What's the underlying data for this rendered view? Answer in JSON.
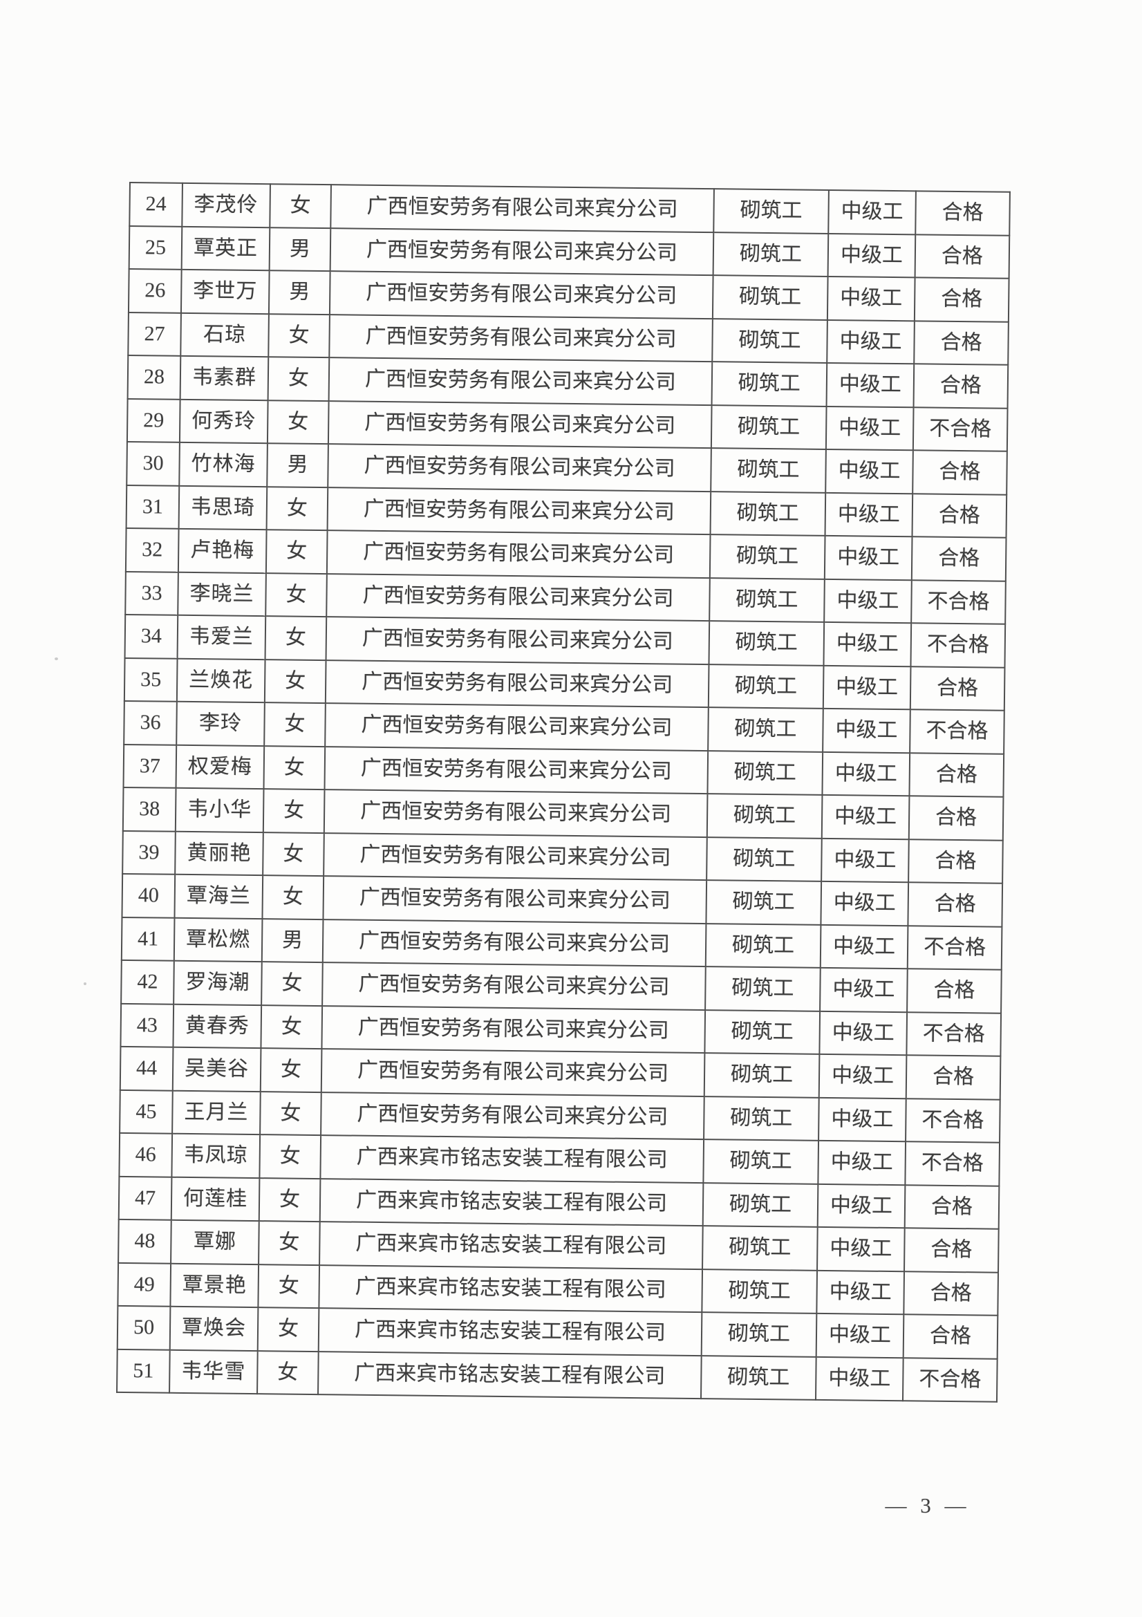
{
  "document": {
    "table": {
      "rows": [
        {
          "no": "24",
          "name": "李茂伶",
          "gender": "女",
          "company": "广西恒安劳务有限公司来宾分公司",
          "occupation": "砌筑工",
          "level": "中级工",
          "result": "合格"
        },
        {
          "no": "25",
          "name": "覃英正",
          "gender": "男",
          "company": "广西恒安劳务有限公司来宾分公司",
          "occupation": "砌筑工",
          "level": "中级工",
          "result": "合格"
        },
        {
          "no": "26",
          "name": "李世万",
          "gender": "男",
          "company": "广西恒安劳务有限公司来宾分公司",
          "occupation": "砌筑工",
          "level": "中级工",
          "result": "合格"
        },
        {
          "no": "27",
          "name": "石琼",
          "gender": "女",
          "company": "广西恒安劳务有限公司来宾分公司",
          "occupation": "砌筑工",
          "level": "中级工",
          "result": "合格"
        },
        {
          "no": "28",
          "name": "韦素群",
          "gender": "女",
          "company": "广西恒安劳务有限公司来宾分公司",
          "occupation": "砌筑工",
          "level": "中级工",
          "result": "合格"
        },
        {
          "no": "29",
          "name": "何秀玲",
          "gender": "女",
          "company": "广西恒安劳务有限公司来宾分公司",
          "occupation": "砌筑工",
          "level": "中级工",
          "result": "不合格"
        },
        {
          "no": "30",
          "name": "竹林海",
          "gender": "男",
          "company": "广西恒安劳务有限公司来宾分公司",
          "occupation": "砌筑工",
          "level": "中级工",
          "result": "合格"
        },
        {
          "no": "31",
          "name": "韦思琦",
          "gender": "女",
          "company": "广西恒安劳务有限公司来宾分公司",
          "occupation": "砌筑工",
          "level": "中级工",
          "result": "合格"
        },
        {
          "no": "32",
          "name": "卢艳梅",
          "gender": "女",
          "company": "广西恒安劳务有限公司来宾分公司",
          "occupation": "砌筑工",
          "level": "中级工",
          "result": "合格"
        },
        {
          "no": "33",
          "name": "李晓兰",
          "gender": "女",
          "company": "广西恒安劳务有限公司来宾分公司",
          "occupation": "砌筑工",
          "level": "中级工",
          "result": "不合格"
        },
        {
          "no": "34",
          "name": "韦爱兰",
          "gender": "女",
          "company": "广西恒安劳务有限公司来宾分公司",
          "occupation": "砌筑工",
          "level": "中级工",
          "result": "不合格"
        },
        {
          "no": "35",
          "name": "兰焕花",
          "gender": "女",
          "company": "广西恒安劳务有限公司来宾分公司",
          "occupation": "砌筑工",
          "level": "中级工",
          "result": "合格"
        },
        {
          "no": "36",
          "name": "李玲",
          "gender": "女",
          "company": "广西恒安劳务有限公司来宾分公司",
          "occupation": "砌筑工",
          "level": "中级工",
          "result": "不合格"
        },
        {
          "no": "37",
          "name": "权爱梅",
          "gender": "女",
          "company": "广西恒安劳务有限公司来宾分公司",
          "occupation": "砌筑工",
          "level": "中级工",
          "result": "合格"
        },
        {
          "no": "38",
          "name": "韦小华",
          "gender": "女",
          "company": "广西恒安劳务有限公司来宾分公司",
          "occupation": "砌筑工",
          "level": "中级工",
          "result": "合格"
        },
        {
          "no": "39",
          "name": "黄丽艳",
          "gender": "女",
          "company": "广西恒安劳务有限公司来宾分公司",
          "occupation": "砌筑工",
          "level": "中级工",
          "result": "合格"
        },
        {
          "no": "40",
          "name": "覃海兰",
          "gender": "女",
          "company": "广西恒安劳务有限公司来宾分公司",
          "occupation": "砌筑工",
          "level": "中级工",
          "result": "合格"
        },
        {
          "no": "41",
          "name": "覃松燃",
          "gender": "男",
          "company": "广西恒安劳务有限公司来宾分公司",
          "occupation": "砌筑工",
          "level": "中级工",
          "result": "不合格"
        },
        {
          "no": "42",
          "name": "罗海潮",
          "gender": "女",
          "company": "广西恒安劳务有限公司来宾分公司",
          "occupation": "砌筑工",
          "level": "中级工",
          "result": "合格"
        },
        {
          "no": "43",
          "name": "黄春秀",
          "gender": "女",
          "company": "广西恒安劳务有限公司来宾分公司",
          "occupation": "砌筑工",
          "level": "中级工",
          "result": "不合格"
        },
        {
          "no": "44",
          "name": "吴美谷",
          "gender": "女",
          "company": "广西恒安劳务有限公司来宾分公司",
          "occupation": "砌筑工",
          "level": "中级工",
          "result": "合格"
        },
        {
          "no": "45",
          "name": "王月兰",
          "gender": "女",
          "company": "广西恒安劳务有限公司来宾分公司",
          "occupation": "砌筑工",
          "level": "中级工",
          "result": "不合格"
        },
        {
          "no": "46",
          "name": "韦凤琼",
          "gender": "女",
          "company": "广西来宾市铭志安装工程有限公司",
          "occupation": "砌筑工",
          "level": "中级工",
          "result": "不合格"
        },
        {
          "no": "47",
          "name": "何莲桂",
          "gender": "女",
          "company": "广西来宾市铭志安装工程有限公司",
          "occupation": "砌筑工",
          "level": "中级工",
          "result": "合格"
        },
        {
          "no": "48",
          "name": "覃娜",
          "gender": "女",
          "company": "广西来宾市铭志安装工程有限公司",
          "occupation": "砌筑工",
          "level": "中级工",
          "result": "合格"
        },
        {
          "no": "49",
          "name": "覃景艳",
          "gender": "女",
          "company": "广西来宾市铭志安装工程有限公司",
          "occupation": "砌筑工",
          "level": "中级工",
          "result": "合格"
        },
        {
          "no": "50",
          "name": "覃焕会",
          "gender": "女",
          "company": "广西来宾市铭志安装工程有限公司",
          "occupation": "砌筑工",
          "level": "中级工",
          "result": "合格"
        },
        {
          "no": "51",
          "name": "韦华雪",
          "gender": "女",
          "company": "广西来宾市铭志安装工程有限公司",
          "occupation": "砌筑工",
          "level": "中级工",
          "result": "不合格"
        }
      ]
    },
    "footer": {
      "page_label": "— 3 —",
      "page_number": "3"
    },
    "colors": {
      "paper": "#fcfcfb",
      "ink": "#3d3d3d",
      "table_border": "#4f4f4f"
    }
  }
}
